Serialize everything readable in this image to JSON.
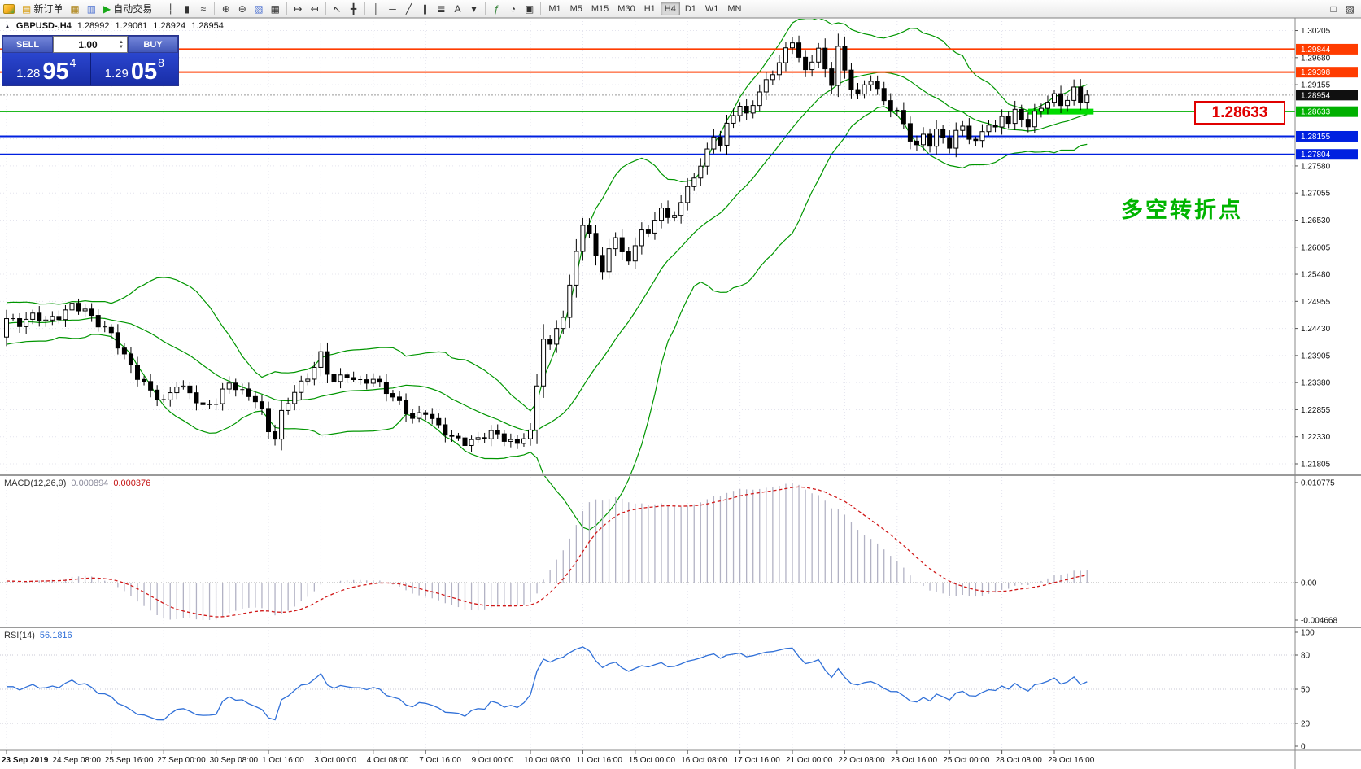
{
  "toolbar": {
    "groups": [
      {
        "name": "trade",
        "items": [
          {
            "name": "new-order-button",
            "glyph": "▤",
            "color": "#d8a018",
            "label": "新订单"
          },
          {
            "name": "chart-windows-button",
            "glyph": "▦",
            "color": "#b08820"
          },
          {
            "name": "data-window-button",
            "glyph": "▥",
            "color": "#4a6fd0"
          },
          {
            "name": "autotrading-button",
            "glyph": "▶",
            "color": "#18a818",
            "label": "自动交易"
          }
        ]
      },
      {
        "name": "chart-type",
        "items": [
          {
            "name": "bar-chart-button",
            "glyph": "┆",
            "color": "#333333"
          },
          {
            "name": "candlestick-chart-button",
            "glyph": "▮",
            "color": "#333333"
          },
          {
            "name": "line-chart-button",
            "glyph": "≈",
            "color": "#333333"
          }
        ]
      },
      {
        "name": "zoom",
        "items": [
          {
            "name": "zoom-in-button",
            "glyph": "⊕",
            "color": "#333333"
          },
          {
            "name": "zoom-out-button",
            "glyph": "⊖",
            "color": "#333333"
          },
          {
            "name": "tile-windows-button",
            "glyph": "▧",
            "color": "#4a6fd0"
          },
          {
            "name": "grid-button",
            "glyph": "▦",
            "color": "#333333"
          }
        ]
      },
      {
        "name": "scroll",
        "items": [
          {
            "name": "auto-scroll-button",
            "glyph": "↦",
            "color": "#333333"
          },
          {
            "name": "chart-shift-button",
            "glyph": "↤",
            "color": "#333333"
          }
        ]
      },
      {
        "name": "cursor",
        "items": [
          {
            "name": "cursor-button",
            "glyph": "↖",
            "color": "#333333"
          },
          {
            "name": "crosshair-button",
            "glyph": "╋",
            "color": "#333333"
          }
        ]
      },
      {
        "name": "objects",
        "items": [
          {
            "name": "vertical-line-button",
            "glyph": "│",
            "color": "#333333"
          },
          {
            "name": "horizontal-line-button",
            "glyph": "─",
            "color": "#333333"
          },
          {
            "name": "trendline-button",
            "glyph": "╱",
            "color": "#333333"
          },
          {
            "name": "channel-button",
            "glyph": "∥",
            "color": "#333333"
          },
          {
            "name": "fibonacci-button",
            "glyph": "≣",
            "color": "#333333"
          },
          {
            "name": "text-button",
            "glyph": "A",
            "color": "#333333"
          },
          {
            "name": "arrows-button",
            "glyph": "▾",
            "color": "#333333"
          }
        ]
      },
      {
        "name": "misc",
        "items": [
          {
            "name": "indicators-button",
            "glyph": "ƒ",
            "color": "#2e7d32"
          },
          {
            "name": "period-button",
            "glyph": "◔",
            "color": "#333333"
          },
          {
            "name": "templates-button",
            "glyph": "▣",
            "color": "#333333"
          }
        ]
      }
    ],
    "timeframes": [
      {
        "label": "M1",
        "active": false
      },
      {
        "label": "M5",
        "active": false
      },
      {
        "label": "M15",
        "active": false
      },
      {
        "label": "M30",
        "active": false
      },
      {
        "label": "H1",
        "active": false
      },
      {
        "label": "H4",
        "active": true
      },
      {
        "label": "D1",
        "active": false
      },
      {
        "label": "W1",
        "active": false
      },
      {
        "label": "MN",
        "active": false
      }
    ],
    "right_icons": [
      {
        "name": "window-layout-button",
        "glyph": "□",
        "color": "#333333"
      },
      {
        "name": "chart-properties-button",
        "glyph": "▨",
        "color": "#333333"
      }
    ]
  },
  "icons": {
    "up_arrow": "▲",
    "down_arrow": "▼",
    "collapse_arrow": "▲"
  },
  "symbol_info": {
    "symbol": "GBPUSD-,H4",
    "open": "1.28992",
    "high": "1.29061",
    "low": "1.28924",
    "close": "1.28954"
  },
  "one_click": {
    "sell_label": "SELL",
    "buy_label": "BUY",
    "volume": "1.00",
    "sell_price_main": "1.28",
    "sell_price_big": "95",
    "sell_price_sup": "4",
    "buy_price_main": "1.29",
    "buy_price_big": "05",
    "buy_price_sup": "8"
  },
  "chart_data": {
    "type": "candlestick",
    "symbol": "GBPUSD-",
    "timeframe": "H4",
    "ohlc_current": {
      "open": 1.28992,
      "high": 1.29061,
      "low": 1.28924,
      "close": 1.28954
    },
    "current_price": 1.28954,
    "current_price_badge": {
      "label": "1.28954",
      "color": "#101010"
    },
    "y_axis_ticks": [
      "1.30205",
      "1.29680",
      "1.29155",
      "1.27580",
      "1.27055",
      "1.26530",
      "1.26005",
      "1.25480",
      "1.24955",
      "1.24430",
      "1.23905",
      "1.23380",
      "1.22855",
      "1.22330",
      "1.21805"
    ],
    "x_axis_labels": [
      "23 Sep 2019",
      "24 Sep 08:00",
      "25 Sep 16:00",
      "27 Sep 00:00",
      "30 Sep 08:00",
      "1 Oct 16:00",
      "3 Oct 00:00",
      "4 Oct 08:00",
      "7 Oct 16:00",
      "9 Oct 00:00",
      "10 Oct 08:00",
      "11 Oct 16:00",
      "15 Oct 00:00",
      "16 Oct 08:00",
      "17 Oct 16:00",
      "21 Oct 00:00",
      "22 Oct 08:00",
      "23 Oct 16:00",
      "25 Oct 00:00",
      "28 Oct 08:00",
      "29 Oct 16:00"
    ],
    "bars_per_label": 8,
    "price_waypoints": [
      [
        0,
        1.2462
      ],
      [
        2,
        1.2452
      ],
      [
        4,
        1.2468
      ],
      [
        6,
        1.2458
      ],
      [
        8,
        1.2466
      ],
      [
        10,
        1.2488
      ],
      [
        12,
        1.2478
      ],
      [
        14,
        1.2452
      ],
      [
        16,
        1.2432
      ],
      [
        18,
        1.239
      ],
      [
        20,
        1.235
      ],
      [
        22,
        1.2322
      ],
      [
        24,
        1.23
      ],
      [
        26,
        1.2335
      ],
      [
        28,
        1.2318
      ],
      [
        30,
        1.229
      ],
      [
        32,
        1.2302
      ],
      [
        34,
        1.2338
      ],
      [
        36,
        1.232
      ],
      [
        38,
        1.2305
      ],
      [
        39,
        1.2282
      ],
      [
        40,
        1.2245
      ],
      [
        41,
        1.2232
      ],
      [
        42,
        1.2278
      ],
      [
        44,
        1.2322
      ],
      [
        46,
        1.2348
      ],
      [
        48,
        1.2392
      ],
      [
        49,
        1.2358
      ],
      [
        50,
        1.2342
      ],
      [
        52,
        1.2352
      ],
      [
        54,
        1.2338
      ],
      [
        56,
        1.2345
      ],
      [
        58,
        1.2322
      ],
      [
        60,
        1.2298
      ],
      [
        62,
        1.2268
      ],
      [
        64,
        1.2282
      ],
      [
        66,
        1.2252
      ],
      [
        68,
        1.2232
      ],
      [
        70,
        1.2222
      ],
      [
        72,
        1.2228
      ],
      [
        74,
        1.2242
      ],
      [
        76,
        1.223
      ],
      [
        78,
        1.2218
      ],
      [
        79,
        1.2235
      ],
      [
        80,
        1.2242
      ],
      [
        81,
        1.233
      ],
      [
        82,
        1.2428
      ],
      [
        83,
        1.2408
      ],
      [
        84,
        1.2442
      ],
      [
        85,
        1.247
      ],
      [
        86,
        1.2522
      ],
      [
        87,
        1.2592
      ],
      [
        88,
        1.2648
      ],
      [
        89,
        1.2622
      ],
      [
        90,
        1.2585
      ],
      [
        91,
        1.2558
      ],
      [
        92,
        1.2592
      ],
      [
        93,
        1.262
      ],
      [
        94,
        1.2596
      ],
      [
        95,
        1.2568
      ],
      [
        96,
        1.2605
      ],
      [
        97,
        1.2638
      ],
      [
        98,
        1.2622
      ],
      [
        99,
        1.2655
      ],
      [
        100,
        1.268
      ],
      [
        101,
        1.2652
      ],
      [
        102,
        1.2665
      ],
      [
        103,
        1.269
      ],
      [
        104,
        1.2712
      ],
      [
        105,
        1.2738
      ],
      [
        106,
        1.276
      ],
      [
        107,
        1.2785
      ],
      [
        108,
        1.2818
      ],
      [
        109,
        1.28
      ],
      [
        110,
        1.2835
      ],
      [
        111,
        1.286
      ],
      [
        112,
        1.2875
      ],
      [
        113,
        1.2855
      ],
      [
        114,
        1.288
      ],
      [
        115,
        1.2902
      ],
      [
        116,
        1.292
      ],
      [
        117,
        1.294
      ],
      [
        118,
        1.2958
      ],
      [
        119,
        1.2982
      ],
      [
        120,
        1.3002
      ],
      [
        121,
        1.2968
      ],
      [
        122,
        1.294
      ],
      [
        123,
        1.2965
      ],
      [
        124,
        1.2985
      ],
      [
        125,
        1.2942
      ],
      [
        126,
        1.292
      ],
      [
        127,
        1.2988
      ],
      [
        128,
        1.294
      ],
      [
        129,
        1.2912
      ],
      [
        130,
        1.2895
      ],
      [
        131,
        1.2912
      ],
      [
        132,
        1.2928
      ],
      [
        133,
        1.2905
      ],
      [
        134,
        1.2882
      ],
      [
        135,
        1.2872
      ],
      [
        136,
        1.2862
      ],
      [
        137,
        1.2838
      ],
      [
        138,
        1.2812
      ],
      [
        139,
        1.2795
      ],
      [
        140,
        1.2818
      ],
      [
        141,
        1.2802
      ],
      [
        142,
        1.2825
      ],
      [
        143,
        1.2812
      ],
      [
        144,
        1.2798
      ],
      [
        145,
        1.2822
      ],
      [
        146,
        1.2835
      ],
      [
        147,
        1.2815
      ],
      [
        148,
        1.2802
      ],
      [
        149,
        1.2825
      ],
      [
        150,
        1.2842
      ],
      [
        151,
        1.2828
      ],
      [
        152,
        1.2855
      ],
      [
        153,
        1.2845
      ],
      [
        154,
        1.2862
      ],
      [
        155,
        1.285
      ],
      [
        156,
        1.2838
      ],
      [
        157,
        1.2858
      ],
      [
        158,
        1.2872
      ],
      [
        159,
        1.2885
      ],
      [
        160,
        1.2892
      ],
      [
        161,
        1.2878
      ],
      [
        162,
        1.2888
      ],
      [
        163,
        1.2905
      ],
      [
        164,
        1.2885
      ],
      [
        165,
        1.2895
      ]
    ],
    "horizontal_lines": [
      {
        "price": 1.29844,
        "color": "#ff3c00",
        "label": "1.29844",
        "width": 2
      },
      {
        "price": 1.29398,
        "color": "#ff3c00",
        "label": "1.29398",
        "width": 2
      },
      {
        "price": 1.28633,
        "color": "#00b000",
        "label": "1.28633",
        "width": 1.5
      },
      {
        "price": 1.28155,
        "color": "#0020e0",
        "label": "1.28155",
        "width": 2
      },
      {
        "price": 1.27804,
        "color": "#0020e0",
        "label": "1.27804",
        "width": 2
      }
    ],
    "thick_segment": {
      "price": 1.28633,
      "from_bar": 156,
      "to_bar": 166,
      "color": "#00dc00"
    },
    "annotations": {
      "turn_point": {
        "text": "多空转折点",
        "color": "#00b400"
      },
      "price_box": {
        "text": "1.28633",
        "color": "#e00000"
      }
    },
    "indicators": [
      {
        "name": "MACD",
        "label": "MACD(12,26,9)",
        "values": [
          "0.000894",
          "0.000376"
        ],
        "params": {
          "fast": 12,
          "slow": 26,
          "signal": 9
        },
        "scale": [
          "0.010775",
          "0.00",
          "-0.004668"
        ]
      },
      {
        "name": "RSI",
        "label": "RSI(14)",
        "value": "56.1816",
        "params": {
          "period": 14
        },
        "scale": [
          "100",
          "80",
          "50",
          "20",
          "0"
        ]
      }
    ],
    "colors": {
      "background": "#ffffff",
      "grid": "#e4e4ee",
      "candle_up": "#ffffff",
      "candle_down": "#000000",
      "candle_border": "#000000",
      "bollinger": "#009600",
      "macd_histogram": "#b2b2c4",
      "macd_signal": "#d01818",
      "rsi_line": "#3070d8"
    }
  }
}
